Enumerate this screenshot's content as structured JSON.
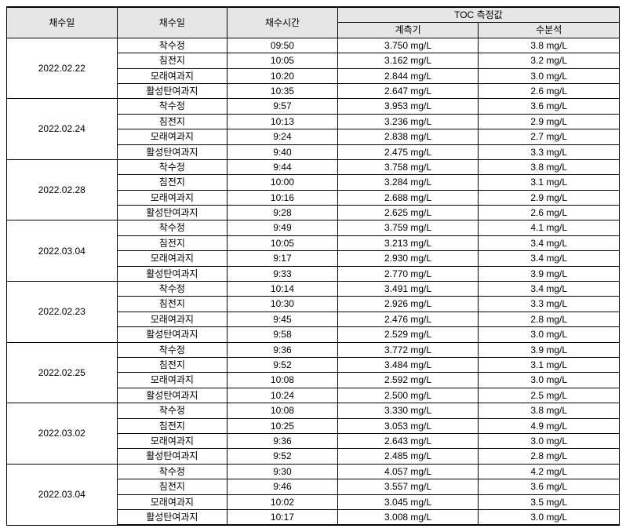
{
  "headers": {
    "col1": "채수일",
    "col2": "채수일",
    "col3": "채수시간",
    "toc_group": "TOC 측정값",
    "toc_meter": "계측기",
    "toc_analysis": "수분석"
  },
  "unit": " mg/L",
  "groups": [
    {
      "date": "2022.02.22",
      "rows": [
        {
          "loc": "착수정",
          "time": "09:50",
          "meter": "3.750",
          "analysis": "3.8"
        },
        {
          "loc": "침전지",
          "time": "10:05",
          "meter": "3.162",
          "analysis": "3.2"
        },
        {
          "loc": "모래여과지",
          "time": "10:20",
          "meter": "2.844",
          "analysis": "3.0"
        },
        {
          "loc": "활성탄여과지",
          "time": "10:35",
          "meter": "2.647",
          "analysis": "2.6"
        }
      ]
    },
    {
      "date": "2022.02.24",
      "rows": [
        {
          "loc": "착수정",
          "time": "9:57",
          "meter": "3.953",
          "analysis": "3.6"
        },
        {
          "loc": "침전지",
          "time": "10:13",
          "meter": "3.236",
          "analysis": "2.9"
        },
        {
          "loc": "모래여과지",
          "time": "9:24",
          "meter": "2.838",
          "analysis": "2.7"
        },
        {
          "loc": "활성탄여과지",
          "time": "9:40",
          "meter": "2.475",
          "analysis": "3.3"
        }
      ]
    },
    {
      "date": "2022.02.28",
      "rows": [
        {
          "loc": "착수정",
          "time": "9:44",
          "meter": "3.758",
          "analysis": "3.8"
        },
        {
          "loc": "침전지",
          "time": "10:00",
          "meter": "3.284",
          "analysis": "3.1"
        },
        {
          "loc": "모래여과지",
          "time": "10:16",
          "meter": "2.688",
          "analysis": "2.9"
        },
        {
          "loc": "활성탄여과지",
          "time": "9:28",
          "meter": "2.625",
          "analysis": "2.6"
        }
      ]
    },
    {
      "date": "2022.03.04",
      "rows": [
        {
          "loc": "착수정",
          "time": "9:49",
          "meter": "3.759",
          "analysis": "4.1"
        },
        {
          "loc": "침전지",
          "time": "10:05",
          "meter": "3.213",
          "analysis": "3.4"
        },
        {
          "loc": "모래여과지",
          "time": "9:17",
          "meter": "2.930",
          "analysis": "3.4"
        },
        {
          "loc": "활성탄여과지",
          "time": "9:33",
          "meter": "2.770",
          "analysis": "3.9"
        }
      ]
    },
    {
      "date": "2022.02.23",
      "rows": [
        {
          "loc": "착수정",
          "time": "10:14",
          "meter": "3.491",
          "analysis": "3.4"
        },
        {
          "loc": "침전지",
          "time": "10:30",
          "meter": "2.926",
          "analysis": "3.3"
        },
        {
          "loc": "모래여과지",
          "time": "9:45",
          "meter": "2.476",
          "analysis": "2.8"
        },
        {
          "loc": "활성탄여과지",
          "time": "9:58",
          "meter": "2.529",
          "analysis": "3.0"
        }
      ]
    },
    {
      "date": "2022.02.25",
      "rows": [
        {
          "loc": "착수정",
          "time": "9:36",
          "meter": "3.772",
          "analysis": "3.9"
        },
        {
          "loc": "침전지",
          "time": "9:52",
          "meter": "3.484",
          "analysis": "3.1"
        },
        {
          "loc": "모래여과지",
          "time": "10:08",
          "meter": "2.592",
          "analysis": "3.0"
        },
        {
          "loc": "활성탄여과지",
          "time": "10:24",
          "meter": "2.500",
          "analysis": "2.5"
        }
      ]
    },
    {
      "date": "2022.03.02",
      "rows": [
        {
          "loc": "착수정",
          "time": "10:08",
          "meter": "3.330",
          "analysis": "3.8"
        },
        {
          "loc": "침전지",
          "time": "10:25",
          "meter": "3.053",
          "analysis": "4.9"
        },
        {
          "loc": "모래여과지",
          "time": "9:36",
          "meter": "2.643",
          "analysis": "3.0"
        },
        {
          "loc": "활성탄여과지",
          "time": "9:52",
          "meter": "2.485",
          "analysis": "2.8"
        }
      ]
    },
    {
      "date": "2022.03.04",
      "rows": [
        {
          "loc": "착수정",
          "time": "9:30",
          "meter": "4.057",
          "analysis": "4.2"
        },
        {
          "loc": "침전지",
          "time": "9:46",
          "meter": "3.557",
          "analysis": "3.6"
        },
        {
          "loc": "모래여과지",
          "time": "10:02",
          "meter": "3.045",
          "analysis": "3.5"
        },
        {
          "loc": "활성탄여과지",
          "time": "10:17",
          "meter": "3.008",
          "analysis": "3.0"
        }
      ]
    }
  ]
}
